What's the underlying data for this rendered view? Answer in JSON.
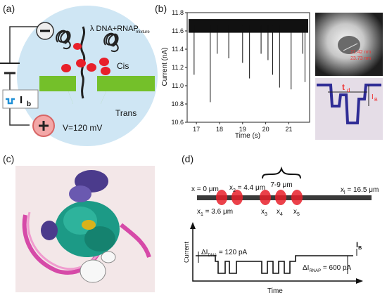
{
  "panel_labels": {
    "a": "(a)",
    "b": "(b)",
    "c": "(c)",
    "d": "(d)"
  },
  "panel_a": {
    "sample_label": "λ DNA+RNAP",
    "sample_subscript": "mixture",
    "cis_label": "Cis",
    "trans_label": "Trans",
    "current_symbol": "I",
    "current_subscript": "b",
    "voltage_label": "V=120 mV",
    "colors": {
      "bubble": "#cfe6f4",
      "membrane": "#74c02a",
      "protein": "#e8202a"
    }
  },
  "panel_b": {
    "inset_scale_1": "21.42 nm",
    "inset_scale_2": "23.73 nm",
    "inset_trace_td": "t",
    "inset_trace_td_sub": "d",
    "inset_trace_ib": "I",
    "inset_trace_ib_sub": "B"
  },
  "chart_data": {
    "type": "line",
    "xlabel": "Time (s)",
    "ylabel": "Current (nA)",
    "xlim": [
      16.6,
      21.9
    ],
    "ylim": [
      10.6,
      11.8
    ],
    "xticks": [
      17,
      18,
      19,
      20,
      21
    ],
    "yticks": [
      10.6,
      10.8,
      11.0,
      11.2,
      11.4,
      11.6,
      11.8
    ],
    "baseline": 11.66,
    "noise_band": [
      11.58,
      11.73
    ],
    "events": [
      {
        "x": 16.9,
        "y": 11.12
      },
      {
        "x": 17.6,
        "y": 10.82
      },
      {
        "x": 17.9,
        "y": 11.35
      },
      {
        "x": 18.4,
        "y": 11.3
      },
      {
        "x": 19.0,
        "y": 11.25
      },
      {
        "x": 19.3,
        "y": 11.08
      },
      {
        "x": 19.8,
        "y": 11.35
      },
      {
        "x": 20.1,
        "y": 11.28
      },
      {
        "x": 20.3,
        "y": 11.12
      },
      {
        "x": 20.6,
        "y": 10.98
      },
      {
        "x": 21.1,
        "y": 10.96
      },
      {
        "x": 21.6,
        "y": 11.35
      },
      {
        "x": 21.7,
        "y": 11.04
      }
    ],
    "colors": {
      "trace": "#111111",
      "axis": "#222222"
    }
  },
  "panel_d": {
    "bracket_label": "7-9 μm",
    "labels_top": [
      {
        "text": "x = 0 μm"
      },
      {
        "text": "x",
        "sub": "2",
        "rest": " = 4.4 μm"
      },
      {
        "text": "x",
        "sub": "l",
        "rest": " = 16.5 μm"
      }
    ],
    "labels_bottom": [
      {
        "text": "x",
        "sub": "1",
        "rest": " = 3.6 μm"
      },
      {
        "text": "x",
        "sub": "3",
        "rest": ""
      },
      {
        "text": "x",
        "sub": "4",
        "rest": ""
      },
      {
        "text": "x",
        "sub": "5",
        "rest": ""
      }
    ],
    "trace": {
      "ylabel": "Current",
      "xlabel": "Time",
      "dna_label": "ΔI",
      "dna_sub": "DNA",
      "dna_value": " = 120 pA",
      "rnap_label": "ΔI",
      "rnap_sub": "RNAP",
      "rnap_value": " = 600 pA",
      "ib_label": "I",
      "ib_sub": "B"
    }
  }
}
